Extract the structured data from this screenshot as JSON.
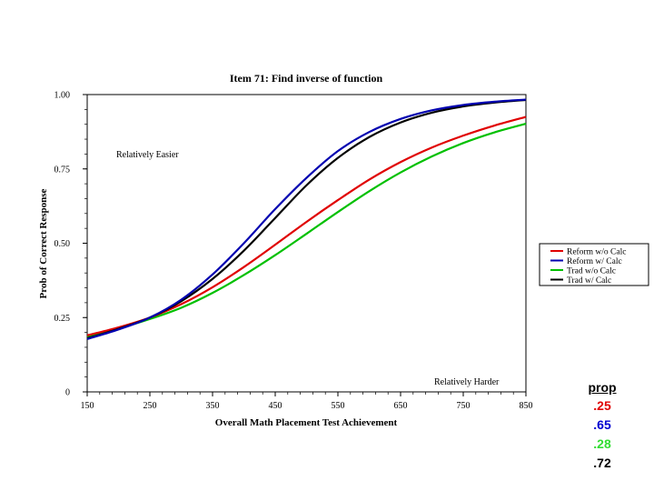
{
  "chart_data": {
    "type": "line",
    "title": "Item 71: Find inverse of function",
    "xlabel": "Overall Math Placement Test Achievement",
    "ylabel": "Prob of Correct Response",
    "xlim": [
      150,
      850
    ],
    "ylim": [
      0,
      1
    ],
    "xticks": [
      "150",
      "250",
      "350",
      "450",
      "550",
      "650",
      "750",
      "850"
    ],
    "yticks": [
      "0",
      "0.25",
      "0.50",
      "0.75",
      "1.00"
    ],
    "annotations": {
      "easier": "Relatively Easier",
      "harder": "Relatively Harder"
    },
    "legend_position": "right",
    "x": [
      150,
      200,
      250,
      300,
      350,
      400,
      450,
      500,
      550,
      600,
      650,
      700,
      750,
      800,
      850
    ],
    "series": [
      {
        "name": "Reform w/o Calc",
        "color": "#e00000",
        "values": [
          0.19,
          0.217,
          0.25,
          0.295,
          0.352,
          0.42,
          0.495,
          0.572,
          0.645,
          0.714,
          0.773,
          0.822,
          0.862,
          0.896,
          0.925
        ]
      },
      {
        "name": "Reform w/ Calc",
        "color": "#0000b0",
        "values": [
          0.178,
          0.21,
          0.25,
          0.31,
          0.395,
          0.5,
          0.615,
          0.72,
          0.81,
          0.874,
          0.918,
          0.947,
          0.965,
          0.976,
          0.983
        ]
      },
      {
        "name": "Trad w/o Calc",
        "color": "#00c000",
        "values": [
          0.185,
          0.213,
          0.245,
          0.283,
          0.333,
          0.393,
          0.46,
          0.532,
          0.605,
          0.675,
          0.738,
          0.792,
          0.837,
          0.873,
          0.902
        ]
      },
      {
        "name": "Trad w/ Calc",
        "color": "#000000",
        "values": [
          0.18,
          0.212,
          0.25,
          0.305,
          0.38,
          0.475,
          0.585,
          0.695,
          0.787,
          0.857,
          0.906,
          0.939,
          0.96,
          0.973,
          0.982
        ]
      }
    ]
  },
  "prop": {
    "header": "prop",
    "values": [
      {
        "text": ".25",
        "color": "#e00000"
      },
      {
        "text": ".65",
        "color": "#0000d0"
      },
      {
        "text": ".28",
        "color": "#33dd33"
      },
      {
        "text": ".72",
        "color": "#000000"
      }
    ]
  }
}
